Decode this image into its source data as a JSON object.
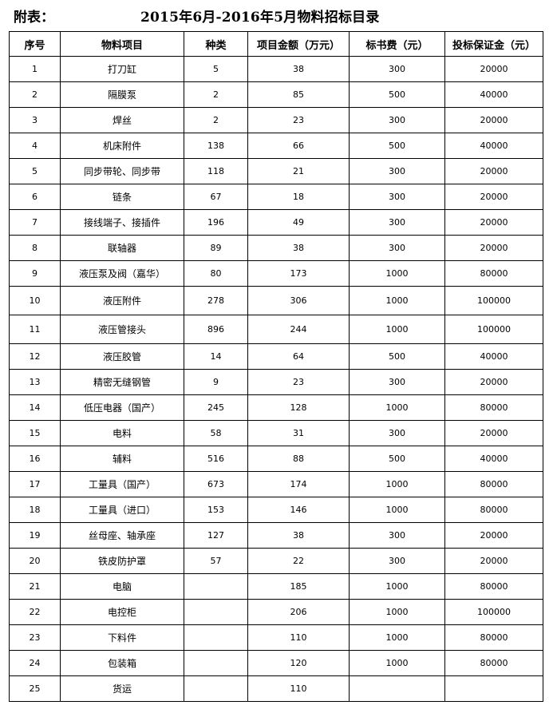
{
  "heading": {
    "prefix": "附表：",
    "title": "2015年6月-2016年5月物料招标目录"
  },
  "table": {
    "columns": [
      "序号",
      "物料项目",
      "种类",
      "项目金额（万元）",
      "标书费（元）",
      "投标保证金（元）"
    ],
    "rows": [
      [
        "1",
        "打刀缸",
        "5",
        "38",
        "300",
        "20000"
      ],
      [
        "2",
        "隔膜泵",
        "2",
        "85",
        "500",
        "40000"
      ],
      [
        "3",
        "焊丝",
        "2",
        "23",
        "300",
        "20000"
      ],
      [
        "4",
        "机床附件",
        "138",
        "66",
        "500",
        "40000"
      ],
      [
        "5",
        "同步带轮、同步带",
        "118",
        "21",
        "300",
        "20000"
      ],
      [
        "6",
        "链条",
        "67",
        "18",
        "300",
        "20000"
      ],
      [
        "7",
        "接线端子、接插件",
        "196",
        "49",
        "300",
        "20000"
      ],
      [
        "8",
        "联轴器",
        "89",
        "38",
        "300",
        "20000"
      ],
      [
        "9",
        "液压泵及阀（嘉华）",
        "80",
        "173",
        "1000",
        "80000"
      ],
      [
        "10",
        "液压附件",
        "278",
        "306",
        "1000",
        "100000"
      ],
      [
        "11",
        "液压管接头",
        "896",
        "244",
        "1000",
        "100000"
      ],
      [
        "12",
        "液压胶管",
        "14",
        "64",
        "500",
        "40000"
      ],
      [
        "13",
        "精密无缝钢管",
        "9",
        "23",
        "300",
        "20000"
      ],
      [
        "14",
        "低压电器（国产）",
        "245",
        "128",
        "1000",
        "80000"
      ],
      [
        "15",
        "电料",
        "58",
        "31",
        "300",
        "20000"
      ],
      [
        "16",
        "辅料",
        "516",
        "88",
        "500",
        "40000"
      ],
      [
        "17",
        "工量具（国产）",
        "673",
        "174",
        "1000",
        "80000"
      ],
      [
        "18",
        "工量具（进口）",
        "153",
        "146",
        "1000",
        "80000"
      ],
      [
        "19",
        "丝母座、轴承座",
        "127",
        "38",
        "300",
        "20000"
      ],
      [
        "20",
        "铁皮防护罩",
        "57",
        "22",
        "300",
        "20000"
      ],
      [
        "21",
        "电脑",
        "",
        "185",
        "1000",
        "80000"
      ],
      [
        "22",
        "电控柜",
        "",
        "206",
        "1000",
        "100000"
      ],
      [
        "23",
        "下料件",
        "",
        "110",
        "1000",
        "80000"
      ],
      [
        "24",
        "包装箱",
        "",
        "120",
        "1000",
        "80000"
      ],
      [
        "25",
        "货运",
        "",
        "110",
        "",
        ""
      ]
    ]
  }
}
